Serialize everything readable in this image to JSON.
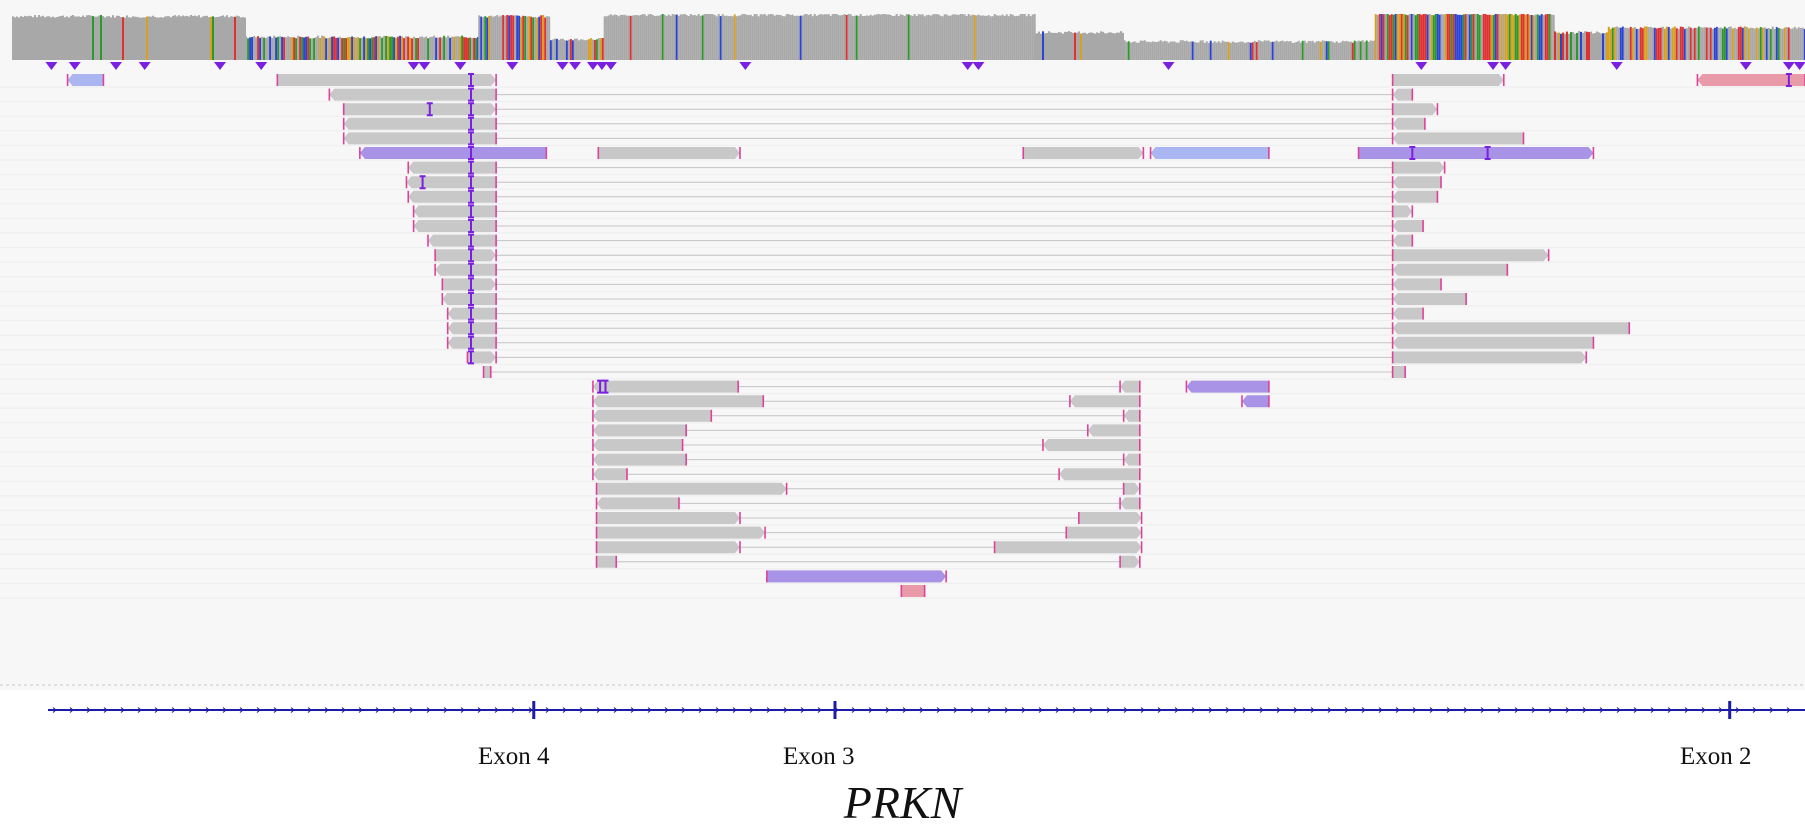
{
  "colors": {
    "coverage": "#a8a8a8",
    "read": "#c8c8c8",
    "read_dark": "#9c9c9c",
    "split_read": "#a993e6",
    "split_read_blue": "#aab6f2",
    "mate_unmapped": "#e99aa8",
    "clip_mark": "#e0409a",
    "insertion": "#7b1fe0",
    "gene_line": "#1c1ca8",
    "mismatch_palette": [
      "#e03030",
      "#2a9a2a",
      "#2a44d8",
      "#d8a020"
    ]
  },
  "coverage": {
    "icon": "coverage-histogram",
    "segments": [
      {
        "from": 0.0,
        "to": 0.13,
        "level": 0.95,
        "mismatch": 0.05
      },
      {
        "from": 0.13,
        "to": 0.26,
        "level": 0.5,
        "mismatch": 0.6
      },
      {
        "from": 0.26,
        "to": 0.3,
        "level": 0.95,
        "mismatch": 0.55
      },
      {
        "from": 0.3,
        "to": 0.33,
        "level": 0.45,
        "mismatch": 0.5
      },
      {
        "from": 0.33,
        "to": 0.57,
        "level": 0.98,
        "mismatch": 0.03
      },
      {
        "from": 0.57,
        "to": 0.62,
        "level": 0.6,
        "mismatch": 0.05
      },
      {
        "from": 0.62,
        "to": 0.76,
        "level": 0.4,
        "mismatch": 0.1
      },
      {
        "from": 0.76,
        "to": 0.86,
        "level": 1.0,
        "mismatch": 0.8
      },
      {
        "from": 0.86,
        "to": 0.89,
        "level": 0.6,
        "mismatch": 0.4
      },
      {
        "from": 0.89,
        "to": 1.0,
        "level": 0.7,
        "mismatch": 0.55
      }
    ]
  },
  "insertion_markers": {
    "icon": "insertion-triangle",
    "positions": [
      0.022,
      0.035,
      0.058,
      0.074,
      0.116,
      0.139,
      0.224,
      0.23,
      0.25,
      0.279,
      0.307,
      0.314,
      0.324,
      0.329,
      0.334,
      0.409,
      0.533,
      0.539,
      0.645,
      0.786,
      0.826,
      0.833,
      0.895,
      0.967,
      0.991,
      0.997
    ]
  },
  "alignments": {
    "rows": [
      [
        {
          "s": 0.031,
          "e": 0.051,
          "k": "b",
          "d": "l"
        },
        {
          "s": 0.148,
          "e": 0.27,
          "k": "g",
          "d": "r",
          "i": [
            0.256
          ]
        },
        {
          "s": 0.77,
          "e": 0.832,
          "k": "g",
          "d": "r"
        },
        {
          "s": 0.94,
          "e": 1.0,
          "k": "p",
          "d": "l",
          "i": [
            0.991
          ]
        }
      ],
      [
        {
          "s": 0.177,
          "e": 0.27,
          "k": "g",
          "d": "l",
          "i": [
            0.256
          ],
          "n": 0.77
        },
        {
          "s": 0.77,
          "e": 0.781,
          "k": "g",
          "d": "l"
        }
      ],
      [
        {
          "s": 0.185,
          "e": 0.27,
          "k": "g",
          "d": "r",
          "i": [
            0.233,
            0.256
          ],
          "n": 0.77
        },
        {
          "s": 0.77,
          "e": 0.795,
          "k": "g",
          "d": "r"
        }
      ],
      [
        {
          "s": 0.185,
          "e": 0.27,
          "k": "g",
          "d": "l",
          "i": [
            0.256
          ],
          "n": 0.77
        },
        {
          "s": 0.77,
          "e": 0.788,
          "k": "g",
          "d": "l"
        }
      ],
      [
        {
          "s": 0.185,
          "e": 0.27,
          "k": "g",
          "d": "l",
          "i": [
            0.256
          ],
          "n": 0.77
        },
        {
          "s": 0.77,
          "e": 0.843,
          "k": "g",
          "d": "l"
        }
      ],
      [
        {
          "s": 0.194,
          "e": 0.298,
          "k": "v",
          "d": "l",
          "i": [
            0.256
          ]
        },
        {
          "s": 0.327,
          "e": 0.406,
          "k": "g",
          "d": "r"
        },
        {
          "s": 0.564,
          "e": 0.631,
          "k": "g",
          "d": "r"
        },
        {
          "s": 0.635,
          "e": 0.701,
          "k": "b",
          "d": "l"
        },
        {
          "s": 0.751,
          "e": 0.882,
          "k": "v",
          "d": "r",
          "i": [
            0.781,
            0.823
          ]
        }
      ],
      [
        {
          "s": 0.221,
          "e": 0.27,
          "k": "g",
          "d": "l",
          "i": [
            0.256
          ],
          "n": 0.77
        },
        {
          "s": 0.77,
          "e": 0.799,
          "k": "g",
          "d": "r"
        }
      ],
      [
        {
          "s": 0.22,
          "e": 0.27,
          "k": "g",
          "d": "l",
          "i": [
            0.229,
            0.256
          ],
          "n": 0.77
        },
        {
          "s": 0.77,
          "e": 0.797,
          "k": "g",
          "d": "l"
        }
      ],
      [
        {
          "s": 0.221,
          "e": 0.27,
          "k": "g",
          "d": "l",
          "i": [
            0.256
          ],
          "n": 0.77
        },
        {
          "s": 0.77,
          "e": 0.795,
          "k": "g",
          "d": "l"
        }
      ],
      [
        {
          "s": 0.224,
          "e": 0.27,
          "k": "g",
          "d": "l",
          "i": [
            0.256
          ],
          "n": 0.77
        },
        {
          "s": 0.77,
          "e": 0.781,
          "k": "g",
          "d": "r"
        }
      ],
      [
        {
          "s": 0.224,
          "e": 0.27,
          "k": "g",
          "d": "l",
          "i": [
            0.256
          ],
          "n": 0.77
        },
        {
          "s": 0.77,
          "e": 0.787,
          "k": "g",
          "d": "l"
        }
      ],
      [
        {
          "s": 0.232,
          "e": 0.27,
          "k": "g",
          "d": "l",
          "i": [
            0.256
          ],
          "n": 0.77
        },
        {
          "s": 0.77,
          "e": 0.781,
          "k": "g",
          "d": "l"
        }
      ],
      [
        {
          "s": 0.236,
          "e": 0.27,
          "k": "g",
          "d": "r",
          "i": [
            0.256
          ],
          "n": 0.77
        },
        {
          "s": 0.77,
          "e": 0.857,
          "k": "g",
          "d": "r"
        }
      ],
      [
        {
          "s": 0.236,
          "e": 0.27,
          "k": "g",
          "d": "l",
          "i": [
            0.256
          ],
          "n": 0.77
        },
        {
          "s": 0.77,
          "e": 0.834,
          "k": "g",
          "d": "l"
        }
      ],
      [
        {
          "s": 0.24,
          "e": 0.27,
          "k": "g",
          "d": "r",
          "i": [
            0.256
          ],
          "n": 0.77
        },
        {
          "s": 0.77,
          "e": 0.797,
          "k": "g",
          "d": "l"
        }
      ],
      [
        {
          "s": 0.24,
          "e": 0.27,
          "k": "g",
          "d": "l",
          "i": [
            0.256
          ],
          "n": 0.77
        },
        {
          "s": 0.77,
          "e": 0.811,
          "k": "g",
          "d": "l"
        }
      ],
      [
        {
          "s": 0.243,
          "e": 0.27,
          "k": "g",
          "d": "l",
          "i": [
            0.256
          ],
          "n": 0.77
        },
        {
          "s": 0.77,
          "e": 0.787,
          "k": "g",
          "d": "l"
        }
      ],
      [
        {
          "s": 0.243,
          "e": 0.27,
          "k": "g",
          "d": "l",
          "i": [
            0.256
          ],
          "n": 0.77
        },
        {
          "s": 0.77,
          "e": 0.902,
          "k": "g",
          "d": "l"
        }
      ],
      [
        {
          "s": 0.243,
          "e": 0.27,
          "k": "g",
          "d": "l",
          "i": [
            0.256
          ],
          "n": 0.77
        },
        {
          "s": 0.77,
          "e": 0.882,
          "k": "g",
          "d": "l"
        }
      ],
      [
        {
          "s": 0.254,
          "e": 0.27,
          "k": "g",
          "d": "r",
          "i": [
            0.256
          ],
          "n": 0.77
        },
        {
          "s": 0.77,
          "e": 0.878,
          "k": "g",
          "d": "r"
        }
      ],
      [
        {
          "s": 0.263,
          "e": 0.267,
          "k": "g",
          "d": "n",
          "n": 0.77
        },
        {
          "s": 0.77,
          "e": 0.777,
          "k": "g",
          "d": "n"
        }
      ],
      [
        {
          "s": 0.324,
          "e": 0.405,
          "k": "g",
          "d": "l",
          "i": [
            0.328,
            0.331
          ],
          "n": 0.618
        },
        {
          "s": 0.618,
          "e": 0.629,
          "k": "g",
          "d": "l"
        },
        {
          "s": 0.655,
          "e": 0.701,
          "k": "v",
          "d": "l"
        }
      ],
      [
        {
          "s": 0.324,
          "e": 0.419,
          "k": "g",
          "d": "l",
          "n": 0.59
        },
        {
          "s": 0.59,
          "e": 0.629,
          "k": "g",
          "d": "l"
        },
        {
          "s": 0.686,
          "e": 0.701,
          "k": "v",
          "d": "l"
        }
      ],
      [
        {
          "s": 0.324,
          "e": 0.39,
          "k": "g",
          "d": "l",
          "n": 0.62
        },
        {
          "s": 0.62,
          "e": 0.629,
          "k": "g",
          "d": "l"
        }
      ],
      [
        {
          "s": 0.324,
          "e": 0.376,
          "k": "g",
          "d": "l",
          "n": 0.6
        },
        {
          "s": 0.6,
          "e": 0.629,
          "k": "g",
          "d": "l"
        }
      ],
      [
        {
          "s": 0.324,
          "e": 0.374,
          "k": "g",
          "d": "l",
          "n": 0.575
        },
        {
          "s": 0.575,
          "e": 0.629,
          "k": "g",
          "d": "l"
        }
      ],
      [
        {
          "s": 0.324,
          "e": 0.376,
          "k": "g",
          "d": "l",
          "n": 0.62
        },
        {
          "s": 0.62,
          "e": 0.629,
          "k": "g",
          "d": "l"
        }
      ],
      [
        {
          "s": 0.324,
          "e": 0.343,
          "k": "g",
          "d": "l",
          "n": 0.584
        },
        {
          "s": 0.584,
          "e": 0.629,
          "k": "g",
          "d": "l"
        }
      ],
      [
        {
          "s": 0.326,
          "e": 0.432,
          "k": "g",
          "d": "r",
          "n": 0.62
        },
        {
          "s": 0.62,
          "e": 0.629,
          "k": "g",
          "d": "r"
        }
      ],
      [
        {
          "s": 0.326,
          "e": 0.372,
          "k": "g",
          "d": "l",
          "n": 0.618
        },
        {
          "s": 0.618,
          "e": 0.629,
          "k": "g",
          "d": "l"
        }
      ],
      [
        {
          "s": 0.326,
          "e": 0.406,
          "k": "g",
          "d": "r",
          "n": 0.595
        },
        {
          "s": 0.595,
          "e": 0.63,
          "k": "g",
          "d": "r"
        }
      ],
      [
        {
          "s": 0.326,
          "e": 0.42,
          "k": "g",
          "d": "r",
          "n": 0.588
        },
        {
          "s": 0.588,
          "e": 0.63,
          "k": "g",
          "d": "r"
        }
      ],
      [
        {
          "s": 0.326,
          "e": 0.406,
          "k": "g",
          "d": "r",
          "n": 0.548
        },
        {
          "s": 0.548,
          "e": 0.63,
          "k": "g",
          "d": "r"
        }
      ],
      [
        {
          "s": 0.326,
          "e": 0.337,
          "k": "g",
          "d": "n",
          "n": 0.618
        },
        {
          "s": 0.618,
          "e": 0.629,
          "k": "g",
          "d": "r"
        }
      ],
      [
        {
          "s": 0.421,
          "e": 0.521,
          "k": "v",
          "d": "r"
        }
      ],
      [
        {
          "s": 0.496,
          "e": 0.509,
          "k": "p",
          "d": "n"
        }
      ]
    ]
  },
  "gene_track": {
    "exon_positions": [
      0.291,
      0.459,
      0.958
    ]
  },
  "labels": {
    "exon4": "Exon 4",
    "exon3": "Exon 3",
    "exon2": "Exon 2",
    "gene": "PRKN"
  }
}
